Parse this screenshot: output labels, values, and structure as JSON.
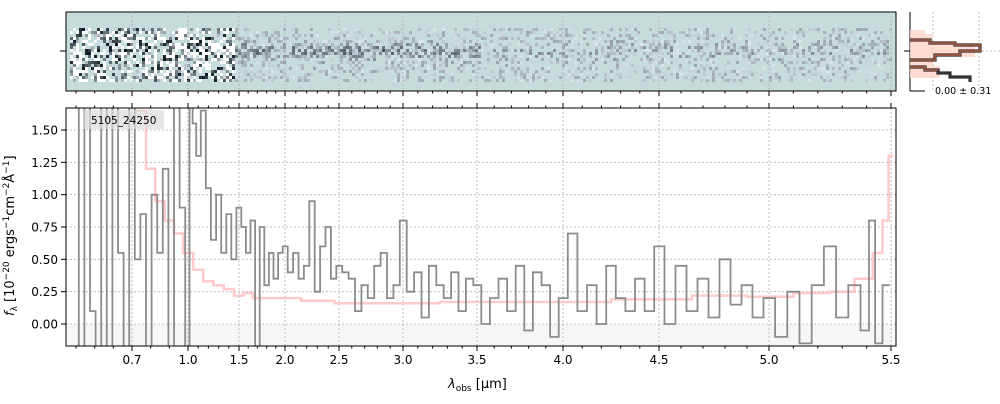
{
  "chart_data": {
    "type": "line",
    "label": "5105_24250",
    "xlabel_main": "λ",
    "xlabel_sub": "obs",
    "xlabel_unit": " [μm]",
    "ylabel_f": "f",
    "ylabel_sub": "λ",
    "ylabel_unit": " [10",
    "ylabel_exp1": "−20",
    "ylabel_mid1": " ergs",
    "ylabel_exp2": "−1",
    "ylabel_mid2": "cm",
    "ylabel_exp3": "−2",
    "ylabel_mid3": "Å",
    "ylabel_exp4": "−1",
    "ylabel_end": "]",
    "ylim": [
      -0.17,
      1.67
    ],
    "xlim": [
      0.35,
      5.52
    ],
    "grid": true,
    "x_ticks": [
      0.7,
      1.0,
      1.5,
      2.0,
      2.5,
      3.0,
      3.5,
      4.0,
      4.5,
      5.0,
      5.5
    ],
    "x_tick_labels": [
      "0.7",
      "1.0",
      "1.5",
      "2.0",
      "2.5",
      "3.0",
      "3.5",
      "4.0",
      "4.5",
      "5.0",
      "5.5"
    ],
    "y_ticks": [
      0,
      0.25,
      0.5,
      0.75,
      1.0,
      1.25,
      1.5
    ],
    "y_tick_labels": [
      "0.00",
      "0.25",
      "0.50",
      "0.75",
      "1.00",
      "1.25",
      "1.50"
    ],
    "colors": {
      "spectrum": "#808080",
      "model": "#ffb3b3",
      "panel_2d": "#c5dcdb",
      "hist_line": "#8b3a1e"
    },
    "series": [
      {
        "role": "spectrum",
        "x": [
          0.4,
          0.43,
          0.46,
          0.49,
          0.52,
          0.55,
          0.58,
          0.61,
          0.64,
          0.67,
          0.7,
          0.73,
          0.76,
          0.79,
          0.82,
          0.85,
          0.88,
          0.91,
          0.94,
          0.97,
          1.0,
          1.03,
          1.06,
          1.1,
          1.15,
          1.2,
          1.25,
          1.3,
          1.35,
          1.4,
          1.45,
          1.5,
          1.55,
          1.6,
          1.65,
          1.7,
          1.75,
          1.8,
          1.85,
          1.9,
          1.95,
          2.0,
          2.05,
          2.1,
          2.15,
          2.2,
          2.25,
          2.3,
          2.35,
          2.4,
          2.45,
          2.5,
          2.55,
          2.6,
          2.65,
          2.7,
          2.75,
          2.8,
          2.85,
          2.9,
          2.95,
          3.0,
          3.05,
          3.1,
          3.15,
          3.2,
          3.25,
          3.3,
          3.35,
          3.4,
          3.45,
          3.5,
          3.55,
          3.6,
          3.65,
          3.7,
          3.75,
          3.8,
          3.85,
          3.9,
          3.95,
          4.0,
          4.05,
          4.1,
          4.15,
          4.2,
          4.25,
          4.3,
          4.35,
          4.4,
          4.45,
          4.5,
          4.55,
          4.6,
          4.65,
          4.7,
          4.75,
          4.8,
          4.85,
          4.9,
          4.95,
          5.0,
          5.05,
          5.1,
          5.15,
          5.2,
          5.25,
          5.3,
          5.35,
          5.4,
          5.42,
          5.45,
          5.48
        ],
        "y": [
          1.7,
          -0.2,
          1.7,
          0.1,
          -0.2,
          1.7,
          -0.2,
          1.7,
          0.55,
          -0.2,
          1.7,
          0.5,
          0.85,
          -0.2,
          1.0,
          0.55,
          1.2,
          -0.2,
          1.7,
          0.9,
          -0.2,
          1.7,
          1.55,
          1.3,
          1.65,
          1.05,
          0.65,
          1.0,
          0.55,
          0.85,
          0.5,
          0.9,
          0.75,
          0.55,
          0.8,
          -0.2,
          0.75,
          0.3,
          0.55,
          0.35,
          0.55,
          0.6,
          0.4,
          0.55,
          0.35,
          0.45,
          0.95,
          0.25,
          0.6,
          0.75,
          0.35,
          0.45,
          0.4,
          0.35,
          0.1,
          0.3,
          0.2,
          0.45,
          0.55,
          0.2,
          0.3,
          0.8,
          0.25,
          0.4,
          0.05,
          0.45,
          0.3,
          0.2,
          0.4,
          0.1,
          0.35,
          0.3,
          0.0,
          0.2,
          0.35,
          0.1,
          0.45,
          -0.05,
          0.4,
          0.3,
          -0.1,
          0.2,
          0.7,
          0.1,
          0.3,
          0.0,
          0.45,
          0.2,
          0.1,
          0.35,
          0.1,
          0.6,
          0.0,
          0.45,
          0.1,
          0.35,
          0.05,
          0.5,
          0.15,
          0.3,
          0.05,
          0.2,
          -0.1,
          0.25,
          -0.15,
          0.3,
          0.6,
          0.05,
          0.3,
          -0.05,
          0.8,
          -0.15,
          0.3
        ]
      },
      {
        "role": "model",
        "x": [
          0.75,
          0.8,
          0.85,
          0.9,
          0.95,
          1.0,
          1.1,
          1.2,
          1.3,
          1.4,
          1.5,
          1.6,
          1.7,
          1.8,
          2.0,
          2.3,
          2.6,
          3.0,
          3.5,
          4.0,
          4.5,
          4.8,
          5.0,
          5.2,
          5.3,
          5.4,
          5.45,
          5.48,
          5.5
        ],
        "y": [
          1.65,
          1.2,
          0.95,
          0.8,
          0.7,
          0.55,
          0.42,
          0.33,
          0.3,
          0.27,
          0.22,
          0.24,
          0.2,
          0.2,
          0.2,
          0.18,
          0.16,
          0.16,
          0.17,
          0.17,
          0.19,
          0.22,
          0.21,
          0.24,
          0.25,
          0.35,
          0.55,
          0.8,
          1.3
        ]
      }
    ],
    "side_panel": {
      "annotation": "0.00 ± 0.31"
    }
  }
}
